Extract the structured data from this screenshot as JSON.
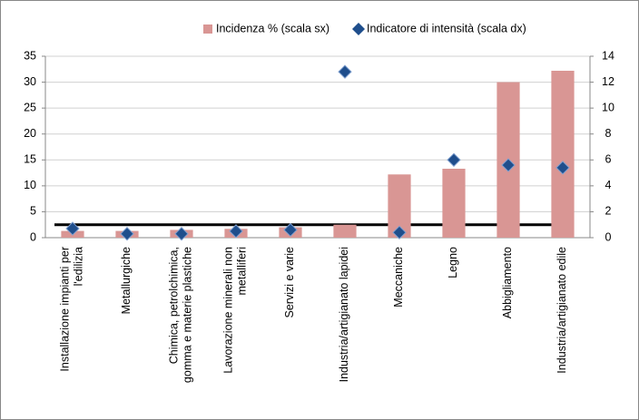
{
  "chart_data": {
    "type": "bar_line",
    "legend": "top",
    "categories": [
      "Installazione impianti per\nl'edilizia",
      "Metallurgiche",
      "Chimica, petrolchimica,\ngomma e materie plastiche",
      "Lavorazione minerali non\nmetalliferi",
      "Servizi e varie",
      "Industria/artigianato lapidei",
      "Meccaniche",
      "Legno",
      "Abbigliamento",
      "Industria/artigianato edile"
    ],
    "series": [
      {
        "name": "Incidenza % (scala sx)",
        "color": "#d99694",
        "type": "bar",
        "values": [
          1.3,
          1.3,
          1.5,
          1.7,
          2.0,
          2.5,
          12.2,
          13.3,
          30.0,
          32.2
        ]
      },
      {
        "name": "Indicatore di intensità (scala dx)",
        "color": "#1f4e8c",
        "type": "diamond",
        "axis": "y2",
        "values": [
          0.7,
          0.3,
          0.3,
          0.5,
          0.6,
          12.8,
          0.4,
          6.0,
          5.6,
          5.4
        ]
      }
    ],
    "reference_line": {
      "value": 1,
      "axis": "y2",
      "color": "#000000"
    },
    "ylim": [
      0,
      35
    ],
    "yticks": [
      0,
      5,
      10,
      15,
      20,
      25,
      30,
      35
    ],
    "y2lim": [
      0,
      14
    ],
    "y2ticks": [
      0,
      2,
      4,
      6,
      8,
      10,
      12,
      14
    ],
    "grid": true
  }
}
